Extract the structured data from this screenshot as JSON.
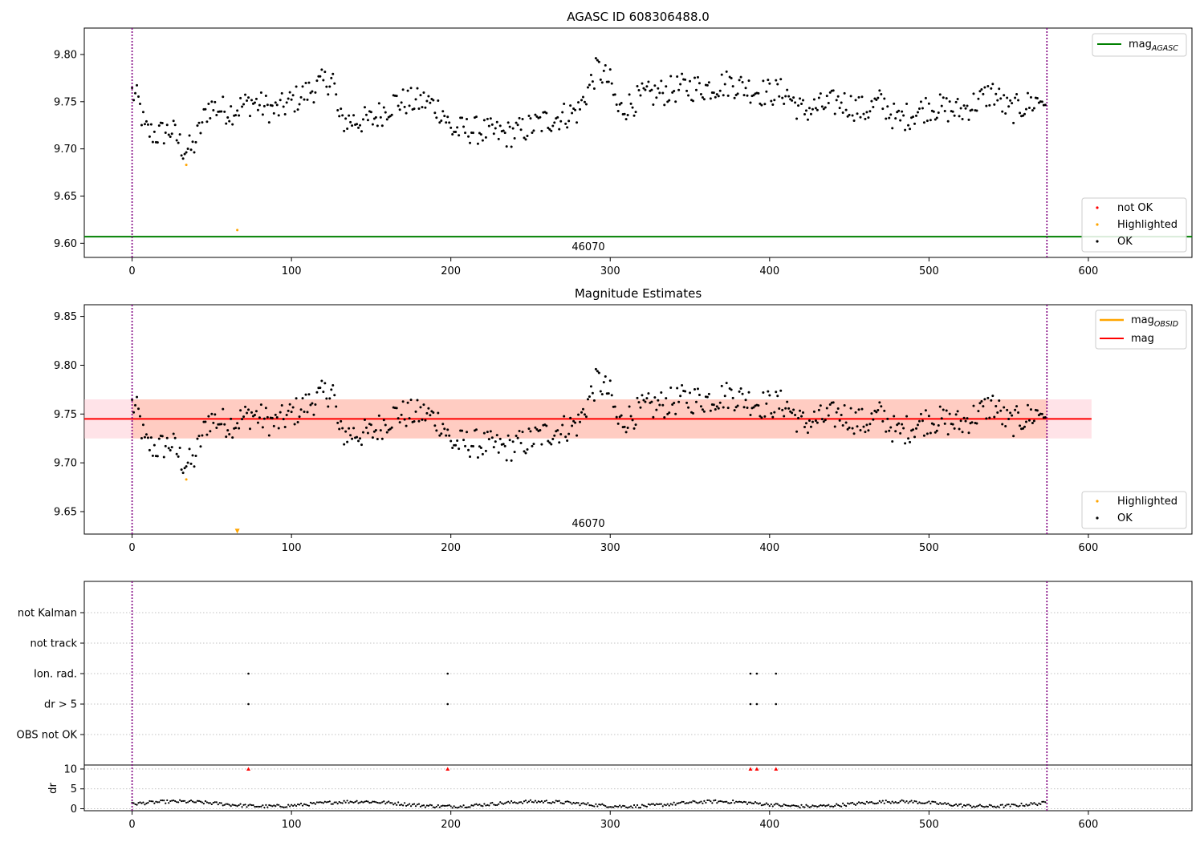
{
  "chart_data": [
    {
      "type": "scatter",
      "title": "AGASC ID 608306488.0",
      "xlim": [
        -30,
        665
      ],
      "ylim": [
        9.585,
        9.828
      ],
      "xticks": [
        0,
        100,
        200,
        300,
        400,
        500,
        600
      ],
      "yticks": [
        9.6,
        9.65,
        9.7,
        9.75,
        9.8
      ],
      "ytick_labels": [
        "9.60",
        "9.65",
        "9.70",
        "9.75",
        "9.80"
      ],
      "obsid_label": "46070",
      "obsid_bounds": [
        0,
        574
      ],
      "mag_agasc": 9.607,
      "legend_upper": {
        "placement": "upper right",
        "entries": [
          {
            "label": "mag",
            "sub": "AGASC",
            "color": "#008000"
          }
        ]
      },
      "legend_lower": {
        "placement": "lower right",
        "entries": [
          {
            "label": "not OK",
            "color": "#ff0000"
          },
          {
            "label": "Highlighted",
            "color": "#ffa500"
          },
          {
            "label": "OK",
            "color": "#000000"
          }
        ]
      },
      "highlighted_points": [
        [
          34,
          9.683
        ],
        [
          66,
          9.614
        ]
      ],
      "series_ok_points": "generated from trend: 0-574 samples, mag 9.70-9.80"
    },
    {
      "type": "scatter",
      "title": "Magnitude Estimates",
      "xlim": [
        -30,
        665
      ],
      "ylim": [
        9.627,
        9.862
      ],
      "xticks": [
        0,
        100,
        200,
        300,
        400,
        500,
        600
      ],
      "yticks": [
        9.65,
        9.7,
        9.75,
        9.8,
        9.85
      ],
      "ytick_labels": [
        "9.65",
        "9.70",
        "9.75",
        "9.80",
        "9.85"
      ],
      "obsid_label": "46070",
      "obsid_bounds": [
        0,
        574
      ],
      "mag": 9.745,
      "mag_band": [
        9.725,
        9.765
      ],
      "mag_obsid": 9.745,
      "mag_obsid_band": [
        9.725,
        9.765
      ],
      "legend_upper": {
        "placement": "upper right",
        "entries": [
          {
            "label": "mag",
            "sub": "OBSID",
            "color": "#ffa500"
          },
          {
            "label": "mag",
            "color": "#ff0000"
          }
        ]
      },
      "legend_lower": {
        "placement": "lower right",
        "entries": [
          {
            "label": "Highlighted",
            "color": "#ffa500"
          },
          {
            "label": "OK",
            "color": "#000000"
          }
        ]
      },
      "highlighted_points": [
        [
          34,
          9.683
        ]
      ],
      "down_marker": [
        66,
        9.63
      ]
    },
    {
      "type": "scatter",
      "title": "",
      "xlim": [
        -30,
        665
      ],
      "xticks": [
        0,
        100,
        200,
        300,
        400,
        500,
        600
      ],
      "flag_labels": [
        "not Kalman",
        "not track",
        "Ion. rad.",
        "dr > 5",
        "OBS not OK"
      ],
      "flag_points": {
        "Ion. rad.": [
          73,
          198,
          388,
          392,
          404
        ],
        "dr > 5": [
          73,
          198,
          388,
          392,
          404
        ]
      },
      "dr_ylabel": "dr",
      "dr_yticks": [
        0,
        5,
        10
      ],
      "dr_ylim": [
        -0.5,
        11
      ],
      "dr_clipped": [
        73,
        198,
        388,
        392,
        404
      ],
      "obsid_bounds": [
        0,
        574
      ]
    }
  ],
  "colors": {
    "ok": "#000000",
    "highlighted": "#ffa500",
    "not_ok": "#ff0000",
    "agasc_line": "#008000",
    "mag_line": "#ff0000",
    "band_fill": "#ffc0cb",
    "band_inner": "#ffa07a",
    "obsid_vline": "#800080",
    "grid": "#b0b0b0"
  }
}
